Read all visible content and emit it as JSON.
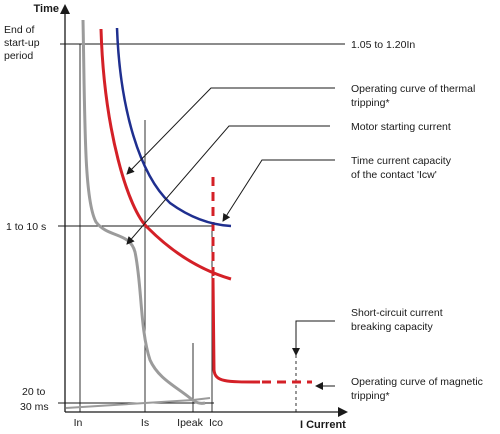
{
  "axes": {
    "y_title": "Time",
    "x_title": "I Current",
    "y_labels": {
      "end_startup_line1": "End of",
      "end_startup_line2": "start-up",
      "end_startup_line3": "period",
      "one_to_ten": "1 to 10 s",
      "twenty_line1": "20 to",
      "twenty_line2": "30 ms"
    },
    "x_labels": {
      "in": "In",
      "is": "Is",
      "ipeak": "Ipeak",
      "ico": "Ico"
    }
  },
  "annotations": {
    "range_setting": "1.05 to 1.20In",
    "thermal_line1": "Operating curve of thermal",
    "thermal_line2": "tripping*",
    "motor": "Motor starting current",
    "icw_line1": "Time current capacity",
    "icw_line2": "of the contact 'Icw'",
    "sc_line1": "Short-circuit current",
    "sc_line2": "breaking capacity",
    "magnetic_line1": "Operating curve of magnetic",
    "magnetic_line2": "tripping*"
  },
  "colors": {
    "thermal_curve": "#1f2f8f",
    "protection_curve": "#d42027",
    "motor_curve": "#9b9b9b",
    "lines": "#1a1a1a"
  }
}
